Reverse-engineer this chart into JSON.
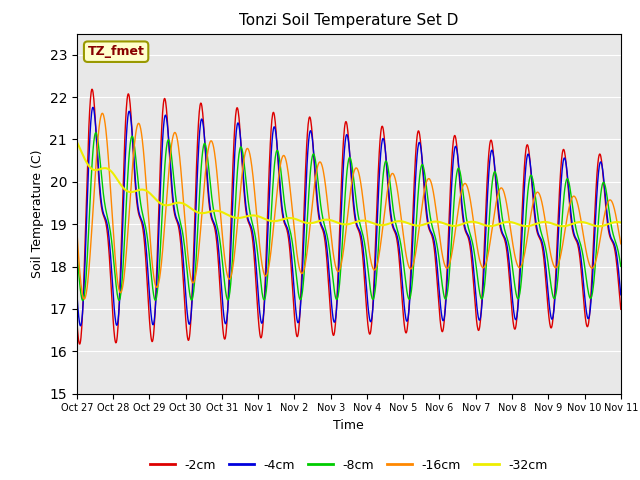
{
  "title": "Tonzi Soil Temperature Set D",
  "xlabel": "Time",
  "ylabel": "Soil Temperature (C)",
  "ylim": [
    15.0,
    23.5
  ],
  "yticks": [
    15.0,
    16.0,
    17.0,
    18.0,
    19.0,
    20.0,
    21.0,
    22.0,
    23.0
  ],
  "xtick_labels": [
    "Oct 27",
    "Oct 28",
    "Oct 29",
    "Oct 30",
    "Oct 31",
    "Nov 1",
    "Nov 2",
    "Nov 3",
    "Nov 4",
    "Nov 5",
    "Nov 6",
    "Nov 7",
    "Nov 8",
    "Nov 9",
    "Nov 10",
    "Nov 11"
  ],
  "annotation_text": "TZ_fmet",
  "colors": {
    "-2cm": "#dd0000",
    "-4cm": "#0000dd",
    "-8cm": "#00cc00",
    "-16cm": "#ff8800",
    "-32cm": "#eeee00"
  },
  "legend_labels": [
    "-2cm",
    "-4cm",
    "-8cm",
    "-16cm",
    "-32cm"
  ],
  "fig_bg_color": "#ffffff",
  "plot_bg_color": "#e8e8e8"
}
